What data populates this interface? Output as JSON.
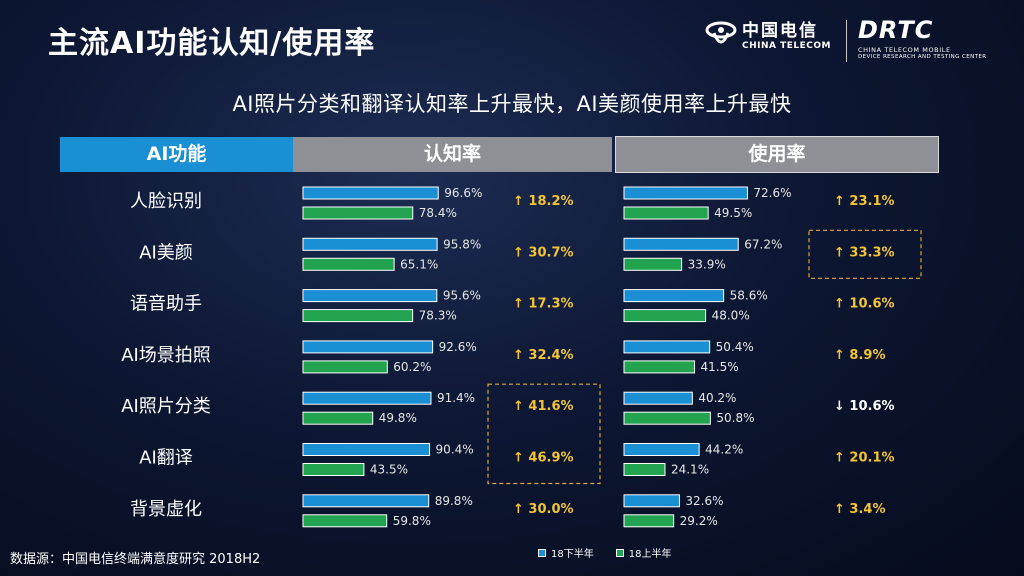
{
  "title": "主流AI功能认知/使用率",
  "subtitle": "AI照片分类和翻译认知率上升最快，AI美颜使用率上升最快",
  "logos": {
    "china_telecom_cn": "中国电信",
    "china_telecom_en": "CHINA TELECOM",
    "drtc_mark": "DRTC",
    "drtc_sub1": "CHINA TELECOM MOBILE",
    "drtc_sub2": "DEVICE RESEARCH AND TESTING CENTER"
  },
  "colors": {
    "series_2018h2": "#1a8fd3",
    "series_2018h1": "#21a350",
    "change_up": "#f3c535",
    "highlight_box": "#e0a92a"
  },
  "source_note": "数据源：中国电信终端满意度研究 2018H2",
  "chart_data": {
    "type": "bar",
    "orientation": "horizontal",
    "headers": {
      "feature": "AI功能",
      "awareness": "认知率",
      "usage": "使用率"
    },
    "categories": [
      "人脸识别",
      "AI美颜",
      "语音助手",
      "AI场景拍照",
      "AI照片分类",
      "AI翻译",
      "背景虚化"
    ],
    "legend": [
      "18下半年",
      "18上半年"
    ],
    "legend_placement": "bottom",
    "awareness": {
      "series": [
        {
          "name": "18下半年",
          "values": [
            96.6,
            95.8,
            95.6,
            92.6,
            91.4,
            90.4,
            89.8
          ]
        },
        {
          "name": "18上半年",
          "values": [
            78.4,
            65.1,
            78.3,
            60.2,
            49.8,
            43.5,
            59.8
          ]
        }
      ],
      "change": [
        "↑ 18.2%",
        "↑ 30.7%",
        "↑ 17.3%",
        "↑ 32.4%",
        "↑ 41.6%",
        "↑ 46.9%",
        "↑ 30.0%"
      ],
      "change_direction": [
        "up",
        "up",
        "up",
        "up",
        "up",
        "up",
        "up"
      ],
      "highlighted": [
        "AI照片分类",
        "AI翻译"
      ]
    },
    "usage": {
      "series": [
        {
          "name": "18下半年",
          "values": [
            72.6,
            67.2,
            58.6,
            50.4,
            40.2,
            44.2,
            32.6
          ]
        },
        {
          "name": "18上半年",
          "values": [
            49.5,
            33.9,
            48.0,
            41.5,
            50.8,
            24.1,
            29.2
          ]
        }
      ],
      "change": [
        "↑ 23.1%",
        "↑ 33.3%",
        "↑ 10.6%",
        "↑ 8.9%",
        "↓ 10.6%",
        "↑ 20.1%",
        "↑ 3.4%"
      ],
      "change_direction": [
        "up",
        "up",
        "up",
        "up",
        "down",
        "up",
        "up"
      ],
      "highlighted": [
        "AI美颜"
      ]
    },
    "value_format": "%",
    "xlim": [
      0,
      100
    ],
    "grid": false
  }
}
